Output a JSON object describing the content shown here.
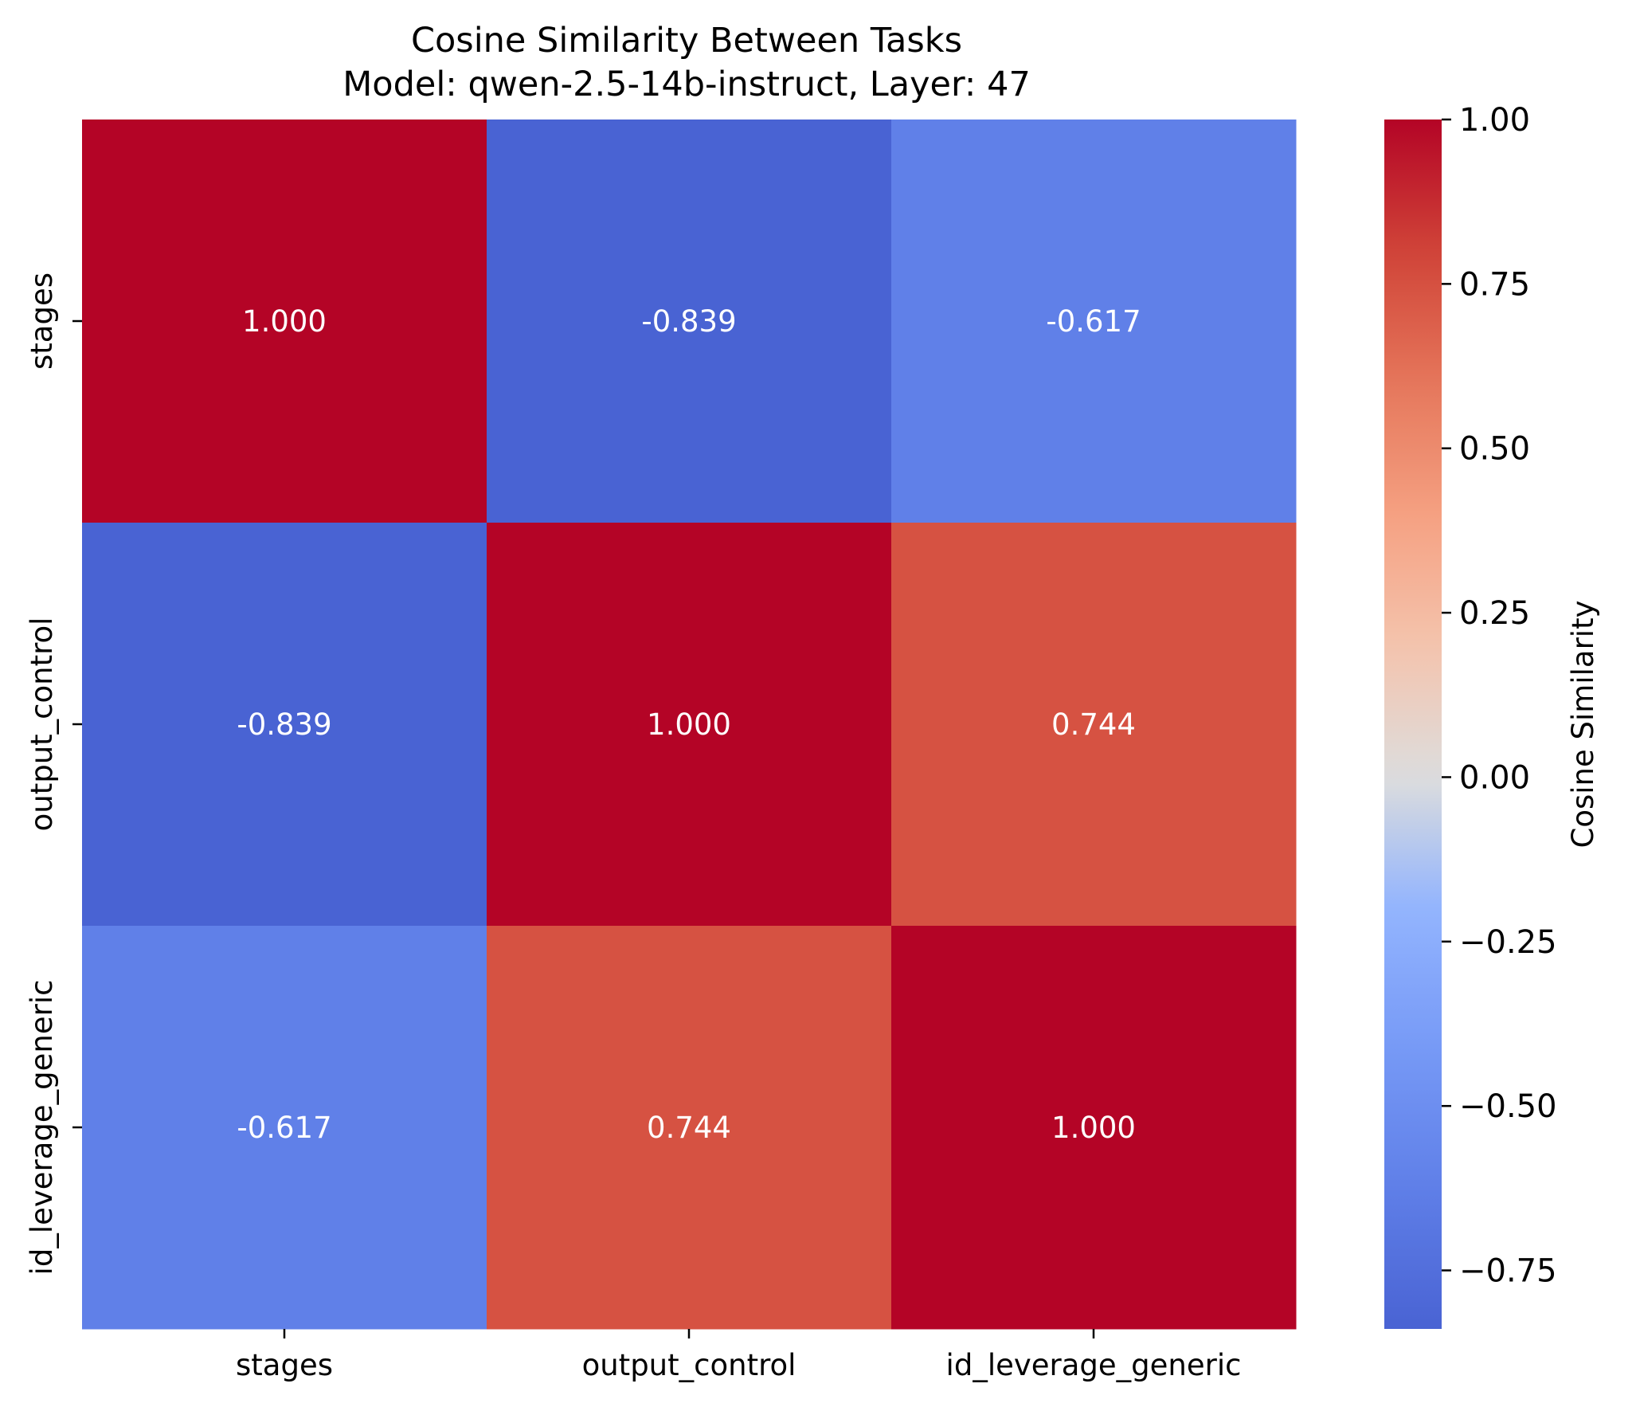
{
  "chart_data": {
    "type": "heatmap",
    "title": "Cosine Similarity Between Tasks",
    "subtitle": "Model: qwen-2.5-14b-instruct, Layer: 47",
    "x_categories": [
      "stages",
      "output_control",
      "id_leverage_generic"
    ],
    "y_categories": [
      "stages",
      "output_control",
      "id_leverage_generic"
    ],
    "values": [
      [
        1.0,
        -0.839,
        -0.617
      ],
      [
        -0.839,
        1.0,
        0.744
      ],
      [
        -0.617,
        0.744,
        1.0
      ]
    ],
    "cell_labels": [
      [
        "1.000",
        "-0.839",
        "-0.617"
      ],
      [
        "-0.839",
        "1.000",
        "0.744"
      ],
      [
        "-0.617",
        "0.744",
        "1.000"
      ]
    ],
    "colormap": "coolwarm",
    "colorbar": {
      "label": "Cosine Similarity",
      "range": [
        -0.839,
        1.0
      ],
      "ticks": [
        1.0,
        0.75,
        0.5,
        0.25,
        0.0,
        -0.25,
        -0.5,
        -0.75
      ],
      "tick_labels": [
        "1.00",
        "0.75",
        "0.50",
        "0.25",
        "0.00",
        "−0.25",
        "−0.50",
        "−0.75"
      ]
    },
    "colors": {
      "high": "#b40426",
      "mid": "#dddddd",
      "low": "#3b4cc0"
    }
  }
}
